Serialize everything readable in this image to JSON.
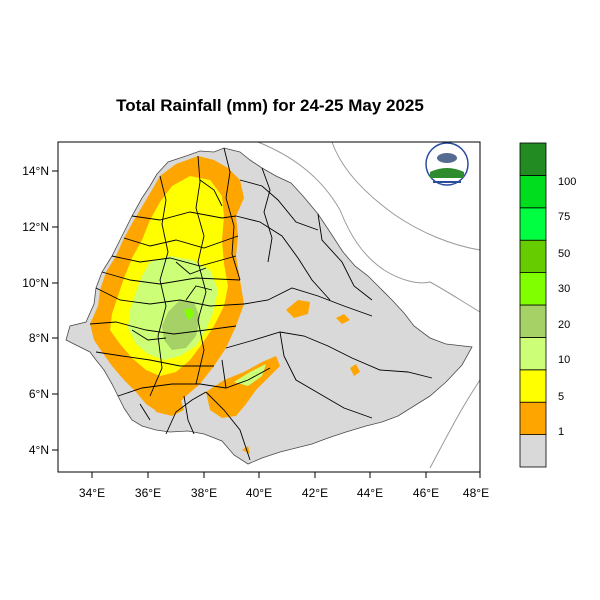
{
  "title": "Total Rainfall (mm) for 24-25 May 2025",
  "map": {
    "lon_ticks": [
      "34°E",
      "36°E",
      "38°E",
      "40°E",
      "42°E",
      "44°E",
      "46°E",
      "48°E"
    ],
    "lat_ticks": [
      "4°N",
      "6°N",
      "8°N",
      "10°N",
      "12°N",
      "14°N"
    ]
  },
  "legend": {
    "colors": [
      "#d9d9d9",
      "#ffa500",
      "#ffff00",
      "#ccff77",
      "#a6d166",
      "#80ff00",
      "#66cc00",
      "#00ff40",
      "#00dd1f",
      "#228b22"
    ],
    "labels": [
      "1",
      "5",
      "10",
      "20",
      "30",
      "50",
      "75",
      "100"
    ]
  },
  "colors": {
    "land": "#d9d9d9",
    "border": "#000000",
    "sea_line": "#9a9a9a"
  }
}
